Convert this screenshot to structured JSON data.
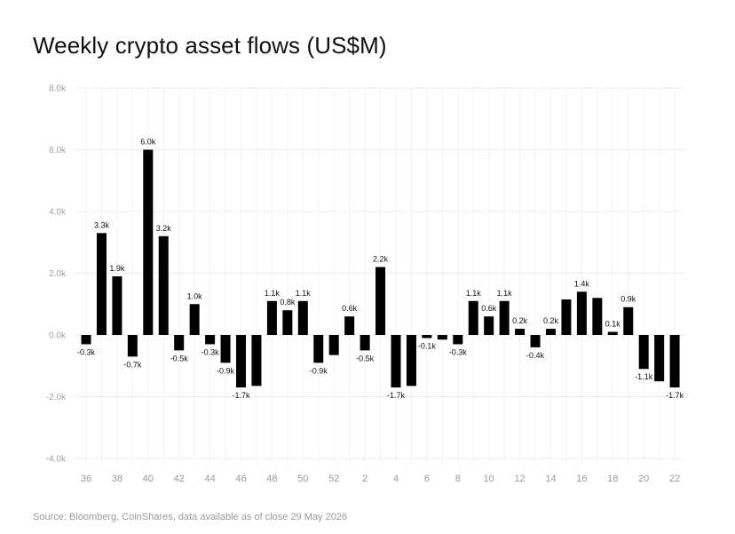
{
  "chart_data": {
    "type": "bar",
    "title": "Weekly crypto asset flows (US$M)",
    "source": "Source: Bloomberg, CoinShares, data available as of close 29 May 2026",
    "xlabel": "",
    "ylabel": "",
    "ylim": [
      -4000,
      8000
    ],
    "y_ticks": [
      8000,
      6000,
      4000,
      2000,
      0,
      -2000,
      -4000
    ],
    "y_tick_labels": [
      "8.0k",
      "6.0k",
      "4.0k",
      "2.0k",
      "0.0k",
      "-2.0k",
      "-4.0k"
    ],
    "x_tick_labels": [
      "36",
      "38",
      "40",
      "42",
      "44",
      "46",
      "48",
      "50",
      "52",
      "2",
      "4",
      "6",
      "8",
      "10",
      "12",
      "14",
      "16",
      "18",
      "20",
      "22"
    ],
    "grid": true,
    "bar_color": "#000000",
    "categories": [
      "36",
      "37",
      "38",
      "39",
      "40",
      "41",
      "42",
      "43",
      "44",
      "45",
      "46",
      "47",
      "48",
      "49",
      "50",
      "51",
      "52",
      "1",
      "2",
      "3",
      "4",
      "5",
      "6",
      "7",
      "8",
      "9",
      "10",
      "11",
      "12",
      "13",
      "14",
      "15",
      "16",
      "17",
      "18",
      "19",
      "20",
      "21",
      "22"
    ],
    "values": [
      -300,
      3300,
      1900,
      -700,
      6000,
      3200,
      -500,
      1000,
      -300,
      -900,
      -1700,
      -1650,
      1100,
      800,
      1100,
      -900,
      -650,
      600,
      -500,
      2200,
      -1700,
      -1650,
      -100,
      -150,
      -300,
      1100,
      600,
      1100,
      200,
      -400,
      200,
      1150,
      1400,
      1200,
      100,
      900,
      -1100,
      -1500,
      -1700
    ],
    "data_labels": [
      "-0.3k",
      "3.3k",
      "1.9k",
      "-0.7k",
      "6.0k",
      "3.2k",
      "-0.5k",
      "1.0k",
      "-0.3k",
      "-0.9k",
      "-1.7k",
      "",
      "1.1k",
      "0.8k",
      "1.1k",
      "-0.9k",
      "",
      "0.6k",
      "-0.5k",
      "2.2k",
      "-1.7k",
      "",
      "-0.1k",
      "",
      "-0.3k",
      "1.1k",
      "0.6k",
      "1.1k",
      "0.2k",
      "-0.4k",
      "0.2k",
      "",
      "1.4k",
      "",
      "0.1k",
      "0.9k",
      "-1.1k",
      "",
      "-1.7k"
    ]
  }
}
